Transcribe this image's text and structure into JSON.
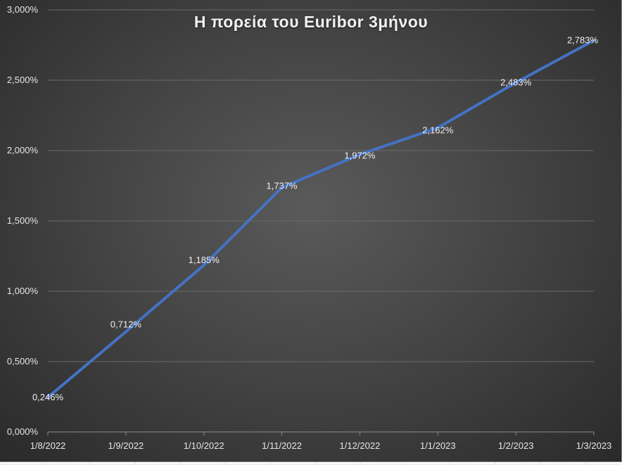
{
  "chart_data": {
    "type": "line",
    "title": "Η πορεία του Euribor 3μήνου",
    "categories": [
      "1/8/2022",
      "1/9/2022",
      "1/10/2022",
      "1/11/2022",
      "1/12/2022",
      "1/1/2023",
      "1/2/2023",
      "1/3/2023"
    ],
    "series": [
      {
        "values": [
          0.246,
          0.712,
          1.185,
          1.737,
          1.972,
          2.162,
          2.483,
          2.783
        ],
        "data_labels": [
          "0,246%",
          "0,712%",
          "1,185%",
          "1,737%",
          "1,972%",
          "2,162%",
          "2,483%",
          "2,783%"
        ],
        "color": "#4472c4"
      }
    ],
    "ylim": [
      0,
      3
    ],
    "yticks": [
      0,
      0.5,
      1,
      1.5,
      2,
      2.5,
      3
    ],
    "ytick_labels": [
      "0,000%",
      "0,500%",
      "1,000%",
      "1,500%",
      "2,000%",
      "2,500%",
      "3,000%"
    ],
    "grid": true,
    "legend": "none",
    "colors": {
      "background": "#454545",
      "gridline": "#6a6a6a",
      "text": "#e6e6e6"
    }
  }
}
